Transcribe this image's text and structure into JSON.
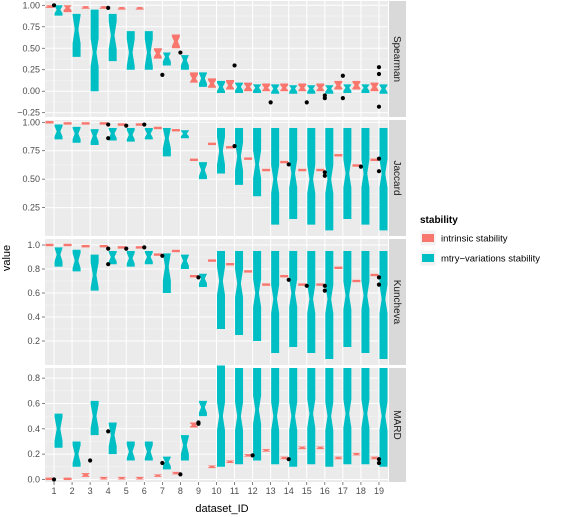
{
  "chart_data": {
    "type": "boxplot",
    "xlabel": "dataset_ID",
    "ylabel": "value",
    "categories": [
      "1",
      "2",
      "3",
      "4",
      "5",
      "6",
      "7",
      "8",
      "9",
      "10",
      "11",
      "12",
      "13",
      "14",
      "15",
      "16",
      "17",
      "18",
      "19"
    ],
    "legend": {
      "title": "stability",
      "placement": "right",
      "entries": [
        {
          "key": "intrinsic",
          "label": "intrinsic stability",
          "color": "#F8766D"
        },
        {
          "key": "mtry",
          "label": "mtry−variations stability",
          "color": "#00BFC4"
        }
      ]
    },
    "colors": {
      "panel_bg": "#EBEBEB",
      "grid": "#FFFFFF",
      "strip_bg": "#D9D9D9",
      "point": "#000000"
    },
    "panels": [
      {
        "name": "Spearman",
        "ylim": [
          -0.3,
          1.05
        ],
        "yticks": [
          -0.25,
          0.0,
          0.25,
          0.5,
          0.75,
          1.0
        ],
        "ytick_labels": [
          "−0.25",
          "0.00",
          "0.25",
          "0.50",
          "0.75",
          "1.00"
        ],
        "intrinsic": [
          [
            0.97,
            0.99,
            1.0
          ],
          [
            0.92,
            0.97,
            1.0
          ],
          [
            0.96,
            0.98,
            0.99
          ],
          [
            0.96,
            0.98,
            0.99
          ],
          [
            0.95,
            0.97,
            0.98
          ],
          [
            0.95,
            0.97,
            0.98
          ],
          [
            0.38,
            0.44,
            0.5
          ],
          [
            0.5,
            0.58,
            0.66
          ],
          [
            0.1,
            0.15,
            0.22
          ],
          [
            0.04,
            0.09,
            0.15
          ],
          [
            0.02,
            0.07,
            0.13
          ],
          [
            0.0,
            0.05,
            0.1
          ],
          [
            0.0,
            0.04,
            0.09
          ],
          [
            0.0,
            0.04,
            0.09
          ],
          [
            0.0,
            0.04,
            0.09
          ],
          [
            0.0,
            0.04,
            0.09
          ],
          [
            0.02,
            0.07,
            0.12
          ],
          [
            0.02,
            0.07,
            0.12
          ],
          [
            0.0,
            0.05,
            0.1
          ]
        ],
        "mtry": [
          [
            0.88,
            0.95,
            1.0
          ],
          [
            0.4,
            0.72,
            0.9
          ],
          [
            0.0,
            0.45,
            0.95
          ],
          [
            0.35,
            0.65,
            0.9
          ],
          [
            0.25,
            0.45,
            0.7
          ],
          [
            0.25,
            0.45,
            0.7
          ],
          [
            0.3,
            0.4,
            0.45
          ],
          [
            0.25,
            0.36,
            0.42
          ],
          [
            0.05,
            0.15,
            0.22
          ],
          [
            -0.02,
            0.05,
            0.12
          ],
          [
            -0.02,
            0.05,
            0.1
          ],
          [
            -0.02,
            0.04,
            0.08
          ],
          [
            -0.03,
            0.03,
            0.08
          ],
          [
            -0.03,
            0.03,
            0.07
          ],
          [
            -0.03,
            0.03,
            0.07
          ],
          [
            -0.03,
            0.03,
            0.07
          ],
          [
            -0.02,
            0.04,
            0.08
          ],
          [
            -0.02,
            0.04,
            0.08
          ],
          [
            -0.03,
            0.03,
            0.08
          ]
        ],
        "outliers": [
          [
            1,
            1.0
          ],
          [
            4,
            0.97
          ],
          [
            7,
            0.19
          ],
          [
            8,
            0.45
          ],
          [
            11,
            0.3
          ],
          [
            13,
            -0.13
          ],
          [
            15,
            -0.13
          ],
          [
            16,
            -0.08
          ],
          [
            16,
            -0.05
          ],
          [
            17,
            0.18
          ],
          [
            17,
            -0.08
          ],
          [
            19,
            0.28
          ],
          [
            19,
            0.2
          ],
          [
            19,
            -0.18
          ]
        ]
      },
      {
        "name": "Jaccard",
        "ylim": [
          0.0,
          1.02
        ],
        "yticks": [
          0.25,
          0.5,
          0.75,
          1.0
        ],
        "ytick_labels": [
          "0.25",
          "0.50",
          "0.75",
          "1.00"
        ],
        "intrinsic": [
          [
            0.99,
            1.0,
            1.0
          ],
          [
            0.98,
            0.99,
            1.0
          ],
          [
            0.98,
            0.99,
            1.0
          ],
          [
            0.98,
            0.99,
            1.0
          ],
          [
            0.97,
            0.98,
            0.99
          ],
          [
            0.97,
            0.98,
            0.99
          ],
          [
            0.94,
            0.95,
            0.96
          ],
          [
            0.92,
            0.93,
            0.94
          ],
          [
            0.66,
            0.67,
            0.68
          ],
          [
            0.8,
            0.81,
            0.82
          ],
          [
            0.77,
            0.78,
            0.79
          ],
          [
            0.67,
            0.68,
            0.69
          ],
          [
            0.57,
            0.58,
            0.59
          ],
          [
            0.64,
            0.65,
            0.66
          ],
          [
            0.57,
            0.58,
            0.59
          ],
          [
            0.57,
            0.58,
            0.59
          ],
          [
            0.7,
            0.71,
            0.72
          ],
          [
            0.61,
            0.62,
            0.63
          ],
          [
            0.66,
            0.67,
            0.68
          ]
        ],
        "mtry": [
          [
            0.85,
            0.92,
            0.98
          ],
          [
            0.82,
            0.9,
            0.96
          ],
          [
            0.8,
            0.88,
            0.94
          ],
          [
            0.84,
            0.9,
            0.95
          ],
          [
            0.83,
            0.89,
            0.95
          ],
          [
            0.85,
            0.9,
            0.95
          ],
          [
            0.7,
            0.86,
            0.95
          ],
          [
            0.86,
            0.9,
            0.93
          ],
          [
            0.5,
            0.58,
            0.65
          ],
          [
            0.55,
            0.75,
            0.95
          ],
          [
            0.45,
            0.7,
            0.95
          ],
          [
            0.35,
            0.63,
            0.95
          ],
          [
            0.1,
            0.5,
            0.95
          ],
          [
            0.15,
            0.55,
            0.95
          ],
          [
            0.1,
            0.5,
            0.95
          ],
          [
            0.05,
            0.5,
            0.95
          ],
          [
            0.15,
            0.55,
            0.95
          ],
          [
            0.1,
            0.55,
            0.95
          ],
          [
            0.05,
            0.55,
            0.95
          ]
        ],
        "outliers": [
          [
            4,
            0.98
          ],
          [
            4,
            0.86
          ],
          [
            5,
            0.97
          ],
          [
            6,
            0.98
          ],
          [
            11,
            0.79
          ],
          [
            14,
            0.63
          ],
          [
            16,
            0.56
          ],
          [
            16,
            0.53
          ],
          [
            18,
            0.61
          ],
          [
            19,
            0.68
          ],
          [
            19,
            0.57
          ]
        ]
      },
      {
        "name": "Kuncheva",
        "ylim": [
          0.0,
          1.05
        ],
        "yticks": [
          0.2,
          0.4,
          0.6,
          0.8,
          1.0
        ],
        "ytick_labels": [
          "0.2",
          "0.4",
          "0.6",
          "0.8",
          "1.0"
        ],
        "intrinsic": [
          [
            0.99,
            1.0,
            1.0
          ],
          [
            0.99,
            1.0,
            1.0
          ],
          [
            0.98,
            0.99,
            1.0
          ],
          [
            0.98,
            0.99,
            1.0
          ],
          [
            0.97,
            0.98,
            0.99
          ],
          [
            0.97,
            0.98,
            0.99
          ],
          [
            0.91,
            0.92,
            0.93
          ],
          [
            0.94,
            0.95,
            0.96
          ],
          [
            0.73,
            0.74,
            0.75
          ],
          [
            0.86,
            0.87,
            0.88
          ],
          [
            0.83,
            0.84,
            0.85
          ],
          [
            0.77,
            0.78,
            0.79
          ],
          [
            0.66,
            0.67,
            0.68
          ],
          [
            0.73,
            0.74,
            0.75
          ],
          [
            0.66,
            0.67,
            0.68
          ],
          [
            0.66,
            0.67,
            0.68
          ],
          [
            0.8,
            0.81,
            0.82
          ],
          [
            0.69,
            0.7,
            0.71
          ],
          [
            0.74,
            0.75,
            0.76
          ]
        ],
        "mtry": [
          [
            0.82,
            0.92,
            0.98
          ],
          [
            0.78,
            0.87,
            0.96
          ],
          [
            0.62,
            0.75,
            0.92
          ],
          [
            0.84,
            0.9,
            0.95
          ],
          [
            0.82,
            0.89,
            0.95
          ],
          [
            0.84,
            0.9,
            0.95
          ],
          [
            0.6,
            0.82,
            0.93
          ],
          [
            0.8,
            0.87,
            0.92
          ],
          [
            0.65,
            0.72,
            0.76
          ],
          [
            0.3,
            0.7,
            0.95
          ],
          [
            0.25,
            0.68,
            0.95
          ],
          [
            0.2,
            0.6,
            0.95
          ],
          [
            0.1,
            0.55,
            0.95
          ],
          [
            0.15,
            0.6,
            0.95
          ],
          [
            0.1,
            0.55,
            0.95
          ],
          [
            0.05,
            0.55,
            0.95
          ],
          [
            0.15,
            0.58,
            0.95
          ],
          [
            0.1,
            0.58,
            0.95
          ],
          [
            0.05,
            0.55,
            0.95
          ]
        ],
        "outliers": [
          [
            4,
            0.97
          ],
          [
            4,
            0.84
          ],
          [
            5,
            0.97
          ],
          [
            6,
            0.98
          ],
          [
            7,
            0.91
          ],
          [
            9,
            0.73
          ],
          [
            14,
            0.71
          ],
          [
            15,
            0.66
          ],
          [
            16,
            0.66
          ],
          [
            16,
            0.62
          ],
          [
            19,
            0.73
          ],
          [
            19,
            0.67
          ]
        ]
      },
      {
        "name": "MARD",
        "ylim": [
          -0.02,
          0.88
        ],
        "yticks": [
          0.0,
          0.2,
          0.4,
          0.6,
          0.8
        ],
        "ytick_labels": [
          "0.0",
          "0.2",
          "0.4",
          "0.6",
          "0.8"
        ],
        "intrinsic": [
          [
            0.0,
            0.005,
            0.01
          ],
          [
            0.0,
            0.005,
            0.01
          ],
          [
            0.02,
            0.035,
            0.05
          ],
          [
            0.0,
            0.01,
            0.02
          ],
          [
            0.0,
            0.01,
            0.02
          ],
          [
            0.0,
            0.01,
            0.02
          ],
          [
            0.02,
            0.03,
            0.04
          ],
          [
            0.04,
            0.05,
            0.06
          ],
          [
            0.41,
            0.43,
            0.45
          ],
          [
            0.09,
            0.1,
            0.11
          ],
          [
            0.13,
            0.14,
            0.15
          ],
          [
            0.18,
            0.19,
            0.2
          ],
          [
            0.22,
            0.23,
            0.24
          ],
          [
            0.16,
            0.17,
            0.18
          ],
          [
            0.24,
            0.25,
            0.26
          ],
          [
            0.24,
            0.25,
            0.26
          ],
          [
            0.16,
            0.17,
            0.18
          ],
          [
            0.19,
            0.2,
            0.21
          ],
          [
            0.16,
            0.17,
            0.18
          ]
        ],
        "mtry": [
          [
            0.25,
            0.4,
            0.52
          ],
          [
            0.1,
            0.2,
            0.3
          ],
          [
            0.35,
            0.5,
            0.62
          ],
          [
            0.2,
            0.35,
            0.45
          ],
          [
            0.15,
            0.22,
            0.3
          ],
          [
            0.15,
            0.22,
            0.3
          ],
          [
            0.08,
            0.14,
            0.18
          ],
          [
            0.15,
            0.27,
            0.35
          ],
          [
            0.5,
            0.57,
            0.62
          ],
          [
            0.1,
            0.5,
            0.9
          ],
          [
            0.12,
            0.5,
            0.88
          ],
          [
            0.15,
            0.55,
            0.88
          ],
          [
            0.12,
            0.5,
            0.88
          ],
          [
            0.1,
            0.5,
            0.88
          ],
          [
            0.12,
            0.52,
            0.88
          ],
          [
            0.1,
            0.5,
            0.88
          ],
          [
            0.12,
            0.52,
            0.88
          ],
          [
            0.12,
            0.52,
            0.88
          ],
          [
            0.1,
            0.5,
            0.88
          ]
        ],
        "outliers": [
          [
            1,
            0.0
          ],
          [
            3,
            0.15
          ],
          [
            4,
            0.38
          ],
          [
            7,
            0.13
          ],
          [
            8,
            0.04
          ],
          [
            9,
            0.45
          ],
          [
            9,
            0.44
          ],
          [
            12,
            0.19
          ],
          [
            14,
            0.16
          ],
          [
            19,
            0.16
          ],
          [
            19,
            0.13
          ]
        ]
      }
    ]
  }
}
